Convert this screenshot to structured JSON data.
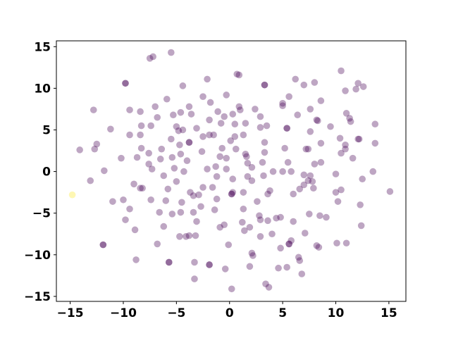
{
  "chart_data": {
    "type": "scatter",
    "xlim": [
      -16.3,
      16.6
    ],
    "ylim": [
      -15.6,
      15.7
    ],
    "xticks": [
      {
        "value": -15,
        "label": "−15"
      },
      {
        "value": -10,
        "label": "−10"
      },
      {
        "value": -5,
        "label": "−5"
      },
      0,
      5,
      10,
      15
    ],
    "yticks": [
      {
        "value": -15,
        "label": "−15"
      },
      {
        "value": -10,
        "label": "−10"
      },
      {
        "value": -5,
        "label": "−5"
      },
      0,
      5,
      10,
      15
    ],
    "alpha": 0.35,
    "series": [
      {
        "color": "#440154",
        "x": [
          -7.2,
          -7.5,
          -5.5,
          -9.8,
          -9.8,
          -4.4,
          -2.1,
          0.7,
          0.9,
          3.3,
          3.3,
          6.2,
          7.0,
          8.0,
          10.5,
          10.9,
          11.9,
          12.1,
          12.6,
          -12.8,
          -11.2,
          -9.4,
          -8.4,
          -7.0,
          -5.9,
          -6.8,
          -5.3,
          -4.6,
          -3.8,
          -3.6,
          -2.5,
          -1.8,
          -0.3,
          -1.1,
          -0.5,
          0.3,
          0.9,
          1.0,
          2.4,
          5.0,
          5.0,
          5.6,
          3.5,
          2.9,
          7.6,
          8.6,
          6.4,
          5.4,
          5.4,
          8.2,
          8.3,
          7.6,
          9.5,
          11.0,
          11.3,
          11.4,
          12.1,
          12.2,
          13.7,
          13.7,
          10.4,
          10.9,
          10.9,
          10.5,
          11.6,
          8.6,
          7.2,
          7.4,
          8.0,
          8.6,
          5.2,
          5.5,
          10.0,
          13.5,
          12.5,
          15.1,
          10.0,
          10.5,
          12.3,
          12.4,
          10.2,
          9.1,
          8.5,
          7.5,
          10.1,
          11.0,
          8.4,
          8.2,
          7.1,
          5.8,
          5.6,
          5.6,
          4.8,
          6.5,
          6.6,
          5.4,
          4.6,
          6.8,
          3.4,
          3.7,
          1.9,
          2.1,
          2.2,
          0.2,
          -0.4,
          -1.9,
          -1.9,
          -3.3,
          -3.3,
          -5.7,
          -5.7,
          -8.8,
          -11.9,
          -11.9,
          -6.8,
          -8.9,
          -9.8,
          -11.0,
          -10.0,
          -9.4,
          -8.2,
          -8.4,
          -9.0,
          -11.8,
          -13.1,
          -14.1,
          -12.7,
          -12.5,
          -10.2,
          -9.4,
          -8.4,
          -8.3,
          -7.4,
          -8.3,
          -8.7,
          -7.6,
          -6.4,
          -7.6,
          -6.5,
          -7.3,
          -6.2,
          -5.2,
          -4.8,
          -4.4,
          -5.0,
          -3.8,
          -3.8,
          -3.1,
          -2.5,
          -1.9,
          -1.5,
          -1.9,
          -0.8,
          0.5,
          1.3,
          1.5,
          2.9,
          -5.5,
          -4.7,
          -5.4,
          -4.6,
          -4.0,
          -2.6,
          -2.1,
          -1.3,
          -0.9,
          -0.7,
          -0.3,
          0.6,
          0.1,
          0.5,
          1.5,
          1.6,
          3.3,
          3.3,
          1.7,
          3.1,
          -0.3,
          -1.2,
          0.3,
          1.7,
          3.2,
          4.1,
          5.0,
          5.8,
          7.0,
          7.6,
          7.4,
          7.8,
          7.0,
          6.6,
          6.0,
          7.9,
          3.8,
          3.6,
          2.1,
          1.3,
          0.3,
          0.2,
          0.2,
          2.6,
          1.3,
          2.8,
          2.9,
          4.4,
          4.8,
          6.0,
          3.6,
          1.2,
          1.4,
          1.9,
          4.0,
          2.9,
          -0.1,
          -0.9,
          -0.5,
          -1.4,
          -2.7,
          -3.1,
          -3.2,
          -3.8,
          -4.7,
          -4.1,
          -6.2,
          -6.6,
          -5.4,
          -4.6,
          -3.4,
          -6.0,
          -4.5,
          -2.9,
          -3.4,
          -3.7,
          -1.6,
          -2.5,
          -1.2,
          -5.8,
          -5.0,
          -4.3,
          -7.4,
          2.1
        ],
        "y": [
          13.8,
          13.6,
          14.3,
          10.6,
          10.6,
          10.3,
          11.1,
          11.7,
          11.6,
          10.4,
          10.4,
          11.1,
          10.4,
          10.7,
          12.1,
          9.7,
          9.9,
          10.6,
          10.2,
          7.4,
          5.1,
          7.4,
          7.2,
          7.8,
          8.7,
          6.5,
          6.8,
          7.1,
          7.8,
          6.9,
          9.0,
          8.3,
          9.2,
          7.2,
          6.6,
          6.9,
          7.8,
          7.4,
          7.5,
          7.9,
          8.2,
          9.0,
          5.5,
          6.6,
          7.5,
          8.5,
          6.8,
          5.2,
          5.2,
          6.2,
          6.1,
          4.8,
          5.4,
          7.0,
          6.4,
          6.0,
          3.9,
          3.9,
          5.7,
          3.4,
          4.0,
          3.2,
          2.7,
          2.2,
          1.6,
          3.4,
          2.7,
          2.7,
          0.9,
          1.1,
          2.8,
          1.1,
          -0.3,
          0.0,
          -0.9,
          -2.4,
          -2.5,
          -2.2,
          -4.0,
          -6.5,
          -3.6,
          -5.5,
          -5.3,
          -5.1,
          -8.6,
          -8.6,
          -9.1,
          -8.9,
          -7.4,
          -8.3,
          -8.7,
          -8.7,
          -9.2,
          -10.3,
          -10.7,
          -11.5,
          -11.6,
          -12.3,
          -13.5,
          -13.9,
          -11.4,
          -9.8,
          -10.1,
          -14.1,
          -11.7,
          -11.2,
          -11.2,
          -10.9,
          -12.9,
          -10.9,
          -10.9,
          -10.6,
          -8.8,
          -8.8,
          -8.7,
          -7.0,
          -5.8,
          -3.6,
          -3.4,
          -4.5,
          -2.0,
          -2.0,
          -1.5,
          0.1,
          -1.1,
          2.6,
          2.7,
          3.3,
          1.6,
          4.4,
          4.4,
          5.5,
          5.5,
          2.8,
          1.7,
          2.2,
          2.7,
          0.9,
          1.5,
          0.3,
          -0.5,
          0.4,
          4.9,
          5.0,
          5.4,
          3.5,
          3.5,
          5.2,
          4.2,
          4.4,
          4.4,
          6.2,
          5.8,
          5.7,
          4.4,
          5.8,
          5.3,
          3.9,
          3.2,
          1.7,
          2.1,
          1.3,
          2.4,
          0.3,
          0.6,
          1.8,
          2.8,
          1.6,
          2.7,
          3.7,
          4.2,
          2.1,
          1.8,
          2.3,
          3.5,
          1.0,
          1.1,
          0.3,
          -0.6,
          -0.9,
          -0.6,
          -0.5,
          0.0,
          0.0,
          0.0,
          -0.4,
          -0.5,
          -1.1,
          -1.2,
          -1.6,
          -2.1,
          -2.7,
          -2.0,
          -2.3,
          -2.7,
          -1.1,
          -2.5,
          -2.5,
          -2.7,
          -2.7,
          -3.6,
          -4.5,
          -5.3,
          -5.8,
          -5.6,
          -5.5,
          -6.0,
          -5.9,
          -6.1,
          -7.1,
          -6.7,
          -7.5,
          -7.8,
          -8.8,
          -6.7,
          -6.4,
          -4.6,
          -4.2,
          -6.0,
          -7.7,
          -7.7,
          -7.8,
          -7.8,
          -6.6,
          -4.9,
          -5.1,
          -4.9,
          -4.9,
          -3.5,
          -3.7,
          -2.8,
          -2.9,
          -2.5,
          -1.9,
          -1.9,
          -3.3,
          -2.1,
          -1.2,
          0.0,
          -3.4,
          0.5
        ]
      },
      {
        "color": "#fde725",
        "x": [
          -14.8
        ],
        "y": [
          -2.8
        ]
      }
    ]
  }
}
